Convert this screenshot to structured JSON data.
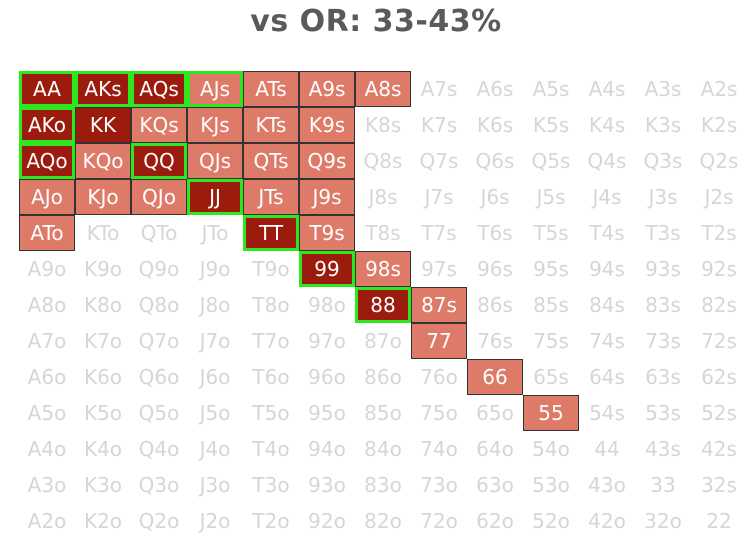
{
  "title": "vs OR: 33-43%",
  "colors": {
    "raise": "#9b1b0c",
    "call": "#de7a68",
    "highlight": "#2ee81e",
    "fold_text": "#d6d6d6"
  },
  "ranks": [
    "A",
    "K",
    "Q",
    "J",
    "T",
    "9",
    "8",
    "7",
    "6",
    "5",
    "4",
    "3",
    "2"
  ],
  "raise_hands": [
    "AA",
    "AKs",
    "AQs",
    "AKo",
    "KK",
    "AQo",
    "QQ",
    "JJ",
    "TT",
    "99",
    "88"
  ],
  "call_hands": [
    "AJs",
    "ATs",
    "A9s",
    "A8s",
    "KQs",
    "KJs",
    "KTs",
    "K9s",
    "KQo",
    "QJs",
    "QTs",
    "Q9s",
    "AJo",
    "KJo",
    "QJo",
    "JTs",
    "J9s",
    "ATo",
    "T9s",
    "98s",
    "87s",
    "77",
    "66",
    "55"
  ],
  "highlighted_hands": [
    "AA",
    "AKs",
    "AQs",
    "AJs",
    "AKo",
    "AQo",
    "QQ",
    "JJ",
    "TT",
    "99",
    "88"
  ]
}
